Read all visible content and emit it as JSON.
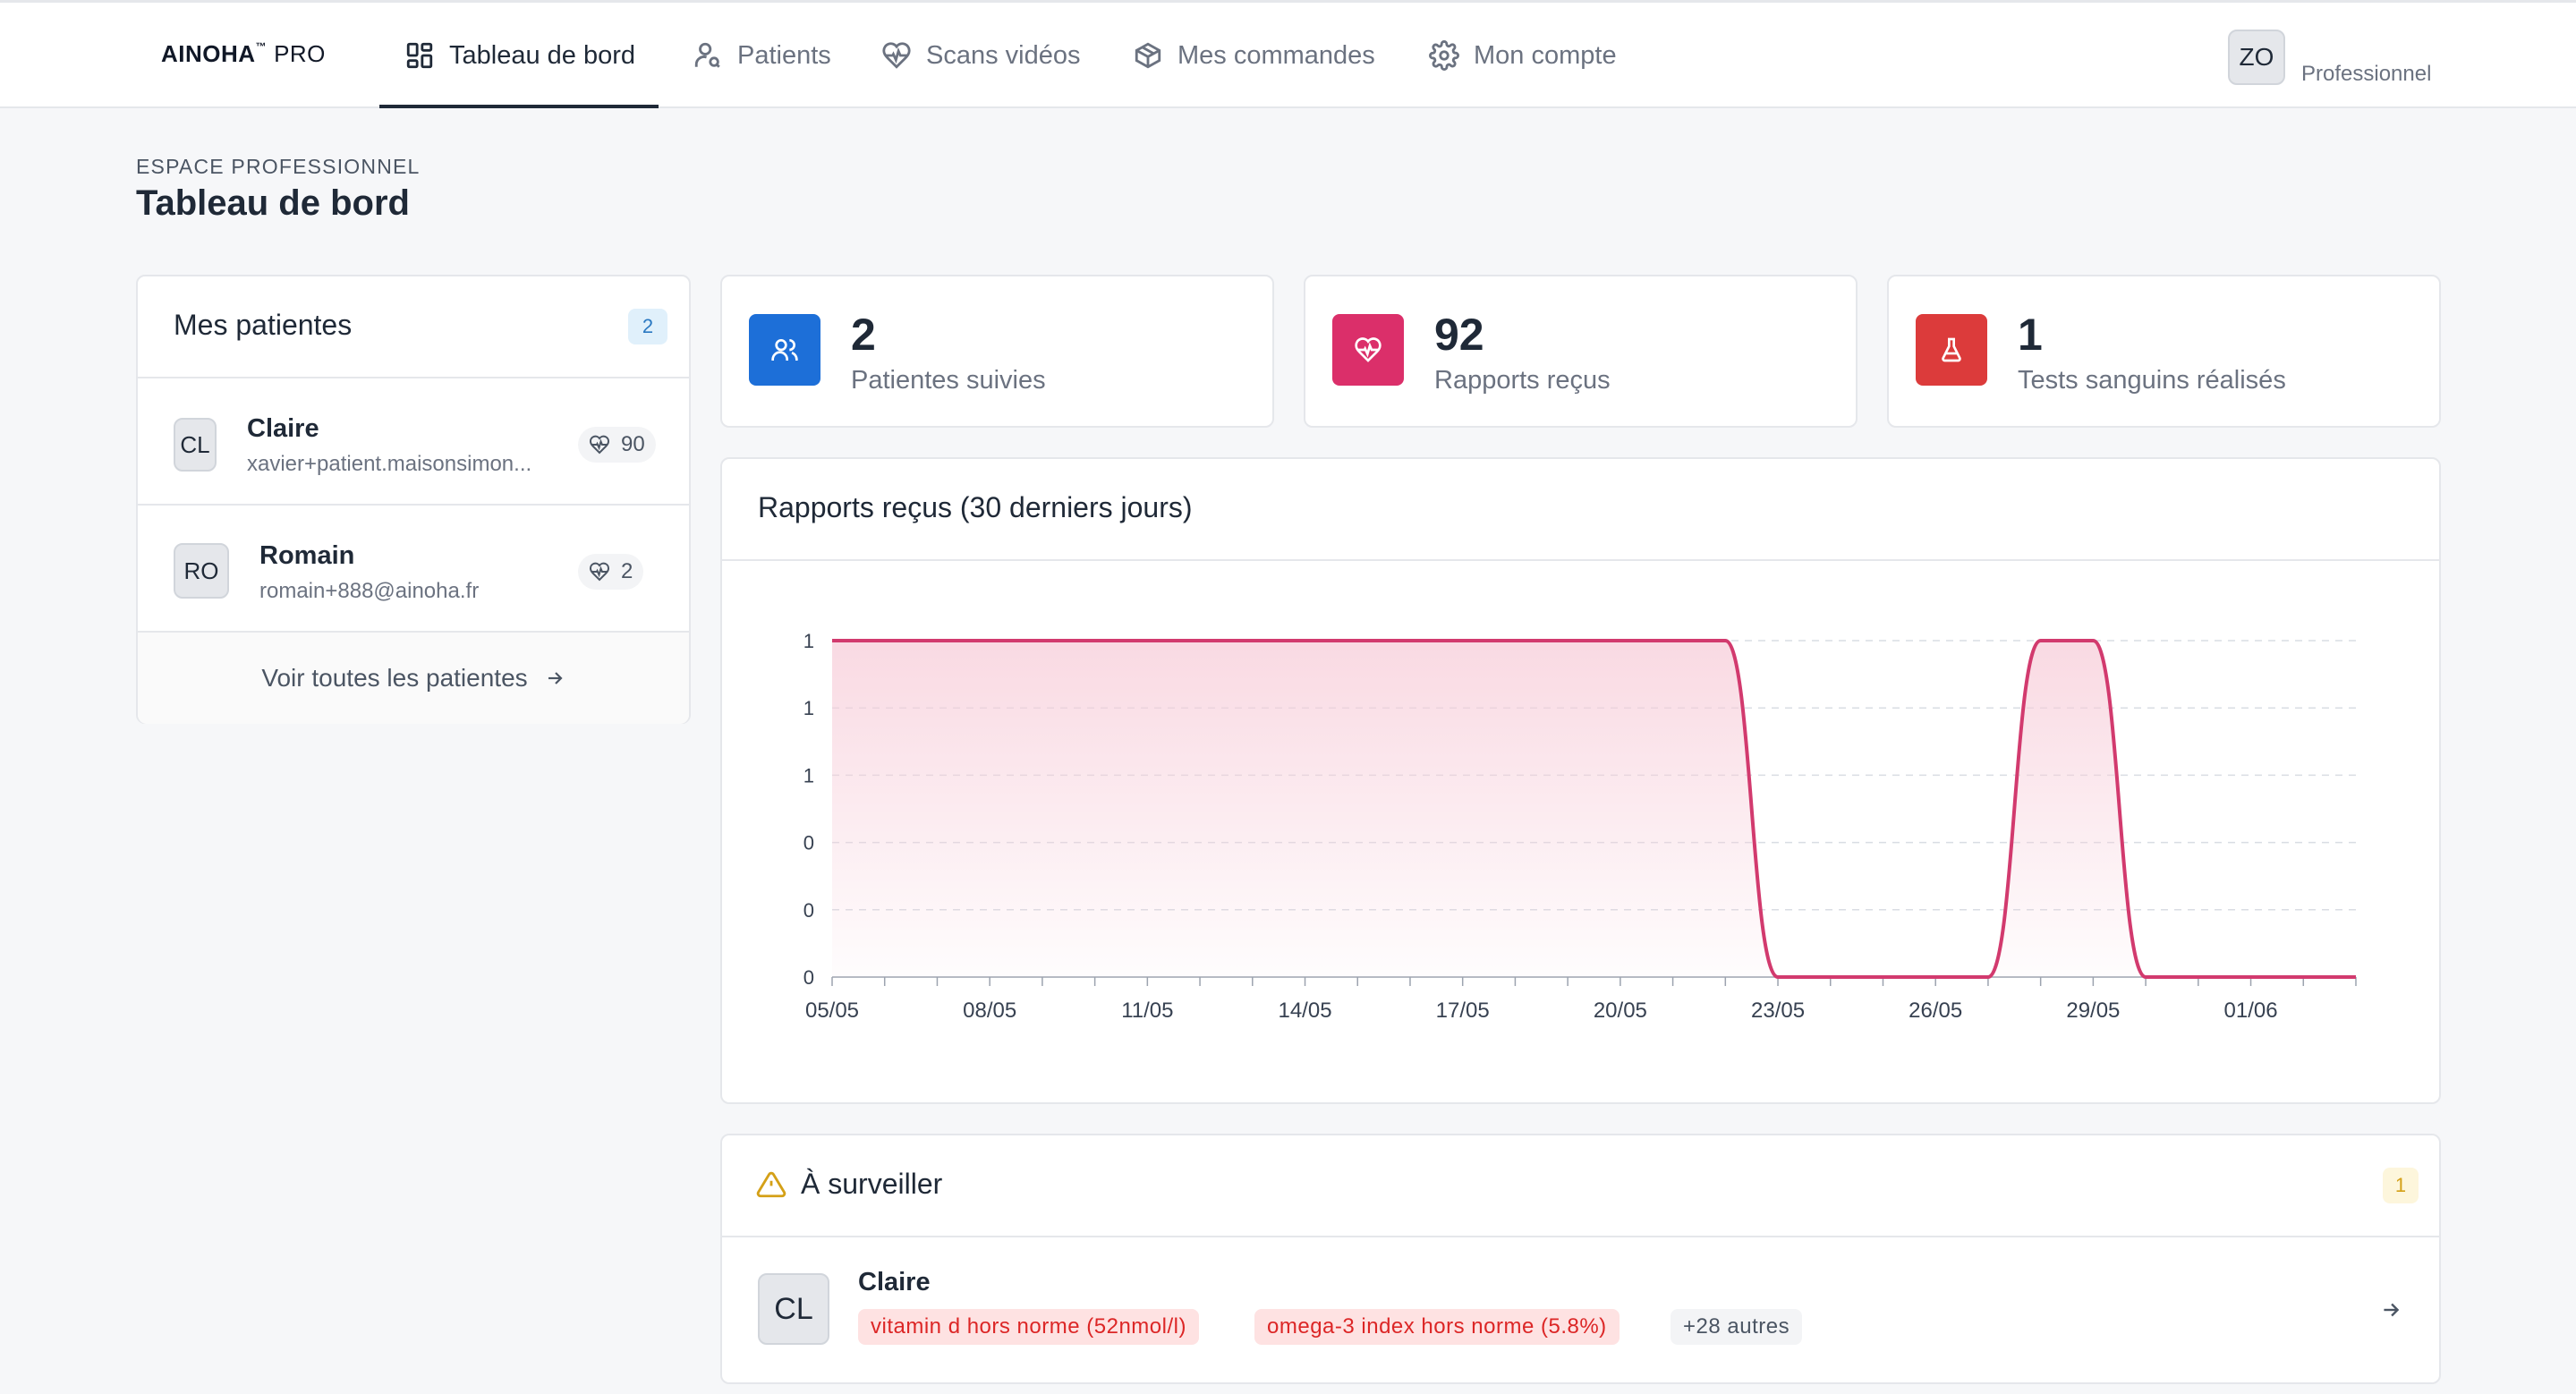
{
  "brand": {
    "name": "AINOHA",
    "suffix": "PRO"
  },
  "nav": {
    "items": [
      {
        "label": "Tableau de bord",
        "icon": "dashboard-icon",
        "active": true
      },
      {
        "label": "Patients",
        "icon": "user-search-icon",
        "active": false
      },
      {
        "label": "Scans vidéos",
        "icon": "heart-pulse-icon",
        "active": false
      },
      {
        "label": "Mes commandes",
        "icon": "box-icon",
        "active": false
      },
      {
        "label": "Mon compte",
        "icon": "gear-icon",
        "active": false
      }
    ]
  },
  "user": {
    "initials": "ZO",
    "role": "Professionnel"
  },
  "page": {
    "eyebrow": "ESPACE PROFESSIONNEL",
    "title": "Tableau de bord"
  },
  "patients_card": {
    "title": "Mes patientes",
    "count": "2",
    "items": [
      {
        "initials": "CL",
        "name": "Claire",
        "email": "xavier+patient.maisonsimon...",
        "scans": "90"
      },
      {
        "initials": "RO",
        "name": "Romain",
        "email": "romain+888@ainoha.fr",
        "scans": "2"
      }
    ],
    "see_all": "Voir toutes les patientes"
  },
  "stats": [
    {
      "value": "2",
      "label": "Patientes suivies",
      "icon": "users-icon",
      "color": "#1d6fd8"
    },
    {
      "value": "92",
      "label": "Rapports reçus",
      "icon": "heart-pulse-icon",
      "color": "#db2f6a"
    },
    {
      "value": "1",
      "label": "Tests sanguins réalisés",
      "icon": "flask-icon",
      "color": "#dc3b3b"
    }
  ],
  "reports_card": {
    "title": "Rapports reçus (30 derniers jours)"
  },
  "chart_data": {
    "type": "area",
    "title": "Rapports reçus (30 derniers jours)",
    "xlabel": "",
    "ylabel": "",
    "x": [
      "05/05",
      "06/05",
      "07/05",
      "08/05",
      "09/05",
      "10/05",
      "11/05",
      "12/05",
      "13/05",
      "14/05",
      "15/05",
      "16/05",
      "17/05",
      "18/05",
      "19/05",
      "20/05",
      "21/05",
      "22/05",
      "23/05",
      "24/05",
      "25/05",
      "26/05",
      "27/05",
      "28/05",
      "29/05",
      "30/05",
      "31/05",
      "01/06",
      "02/06",
      "03/06"
    ],
    "x_tick_labels": [
      "05/05",
      "08/05",
      "11/05",
      "14/05",
      "17/05",
      "20/05",
      "23/05",
      "26/05",
      "29/05",
      "01/06"
    ],
    "y_tick_labels": [
      "0",
      "0",
      "0",
      "1",
      "1",
      "1"
    ],
    "ylim": [
      0,
      1
    ],
    "series": [
      {
        "values": [
          1,
          1,
          1,
          1,
          1,
          1,
          1,
          1,
          1,
          1,
          1,
          1,
          1,
          1,
          1,
          1,
          1,
          1,
          0,
          0,
          0,
          0,
          0,
          1,
          1,
          0,
          0,
          0,
          0,
          0
        ]
      }
    ],
    "grid": true,
    "line_color": "#d23a6e",
    "fill_color": "#f7cdd9"
  },
  "watch_card": {
    "title": "À surveiller",
    "count": "1",
    "item": {
      "initials": "CL",
      "name": "Claire",
      "tags": [
        "vitamin d hors norme (52nmol/l)",
        "omega-3 index hors norme (5.8%)"
      ],
      "more": "+28 autres"
    }
  }
}
